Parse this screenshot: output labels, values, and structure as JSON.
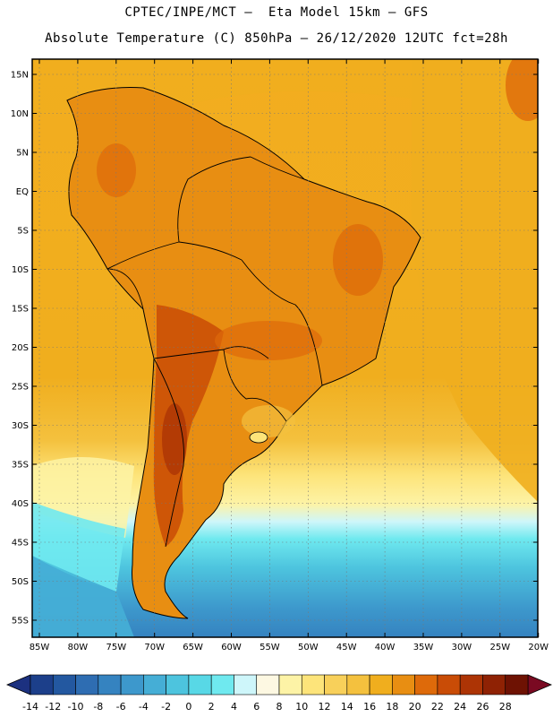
{
  "header": {
    "line1": "CPTEC/INPE/MCT –  Eta Model 15km – GFS",
    "line2": "Absolute Temperature (C) 850hPa – 26/12/2020 12UTC fct=28h"
  },
  "map": {
    "lat_labels": [
      "15N",
      "10N",
      "5N",
      "EQ",
      "5S",
      "10S",
      "15S",
      "20S",
      "25S",
      "30S",
      "35S",
      "40S",
      "45S",
      "50S",
      "55S"
    ],
    "lon_labels": [
      "85W",
      "80W",
      "75W",
      "70W",
      "65W",
      "60W",
      "55W",
      "50W",
      "45W",
      "40W",
      "35W",
      "30W",
      "25W",
      "20W"
    ]
  },
  "legend": {
    "labels": [
      "-14",
      "-12",
      "-10",
      "-8",
      "-6",
      "-4",
      "-2",
      "0",
      "2",
      "4",
      "6",
      "8",
      "10",
      "12",
      "14",
      "16",
      "18",
      "20",
      "22",
      "24",
      "26",
      "28"
    ],
    "colors": [
      "#1c3f8a",
      "#2358a0",
      "#2e6db2",
      "#3583c0",
      "#3d98cc",
      "#45aed6",
      "#4dc4de",
      "#58d8e6",
      "#6fe9ef",
      "#cef6fa",
      "#fdf8e2",
      "#fdf3a6",
      "#fde47a",
      "#f8d05a",
      "#f4c13e",
      "#f0ae1e",
      "#e88e12",
      "#de6a0a",
      "#c94c06",
      "#ad3405",
      "#8f2204",
      "#6e1203"
    ],
    "under_color": "#1c3180",
    "over_color": "#7a0a22"
  }
}
